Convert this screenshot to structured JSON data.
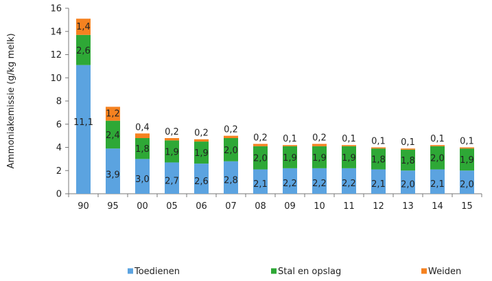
{
  "chart_data": {
    "type": "bar",
    "stacked": true,
    "categories": [
      "90",
      "95",
      "00",
      "05",
      "06",
      "07",
      "08",
      "09",
      "10",
      "11",
      "12",
      "13",
      "14",
      "15"
    ],
    "series": [
      {
        "name": "Toedienen",
        "color": "#5BA3E0",
        "values": [
          11.1,
          3.9,
          3.0,
          2.7,
          2.6,
          2.8,
          2.1,
          2.2,
          2.2,
          2.2,
          2.1,
          2.0,
          2.1,
          2.0
        ],
        "labels": [
          "11,1",
          "3,9",
          "3,0",
          "2,7",
          "2,6",
          "2,8",
          "2,1",
          "2,2",
          "2,2",
          "2,2",
          "2,1",
          "2,0",
          "2,1",
          "2,0"
        ]
      },
      {
        "name": "Stal en opslag",
        "color": "#2EA836",
        "values": [
          2.6,
          2.4,
          1.8,
          1.9,
          1.9,
          2.0,
          2.0,
          1.9,
          1.9,
          1.9,
          1.8,
          1.8,
          2.0,
          1.9
        ],
        "labels": [
          "2,6",
          "2,4",
          "1,8",
          "1,9",
          "1,9",
          "2,0",
          "2,0",
          "1,9",
          "1,9",
          "1,9",
          "1,8",
          "1,8",
          "2,0",
          "1,9"
        ]
      },
      {
        "name": "Weiden",
        "color": "#F58220",
        "values": [
          1.4,
          1.2,
          0.4,
          0.2,
          0.2,
          0.2,
          0.2,
          0.1,
          0.2,
          0.1,
          0.1,
          0.1,
          0.1,
          0.1
        ],
        "labels": [
          "1,4",
          "1,2",
          "0,4",
          "0,2",
          "0,2",
          "0,2",
          "0,2",
          "0,1",
          "0,2",
          "0,1",
          "0,1",
          "0,1",
          "0,1",
          "0,1"
        ]
      }
    ],
    "ylabel": "Ammoniakemissie (g/kg melk)",
    "xlabel": "",
    "ylim": [
      0,
      16
    ],
    "yticks": [
      0,
      2,
      4,
      6,
      8,
      10,
      12,
      14,
      16
    ],
    "grid": false,
    "legend_position": "bottom"
  }
}
